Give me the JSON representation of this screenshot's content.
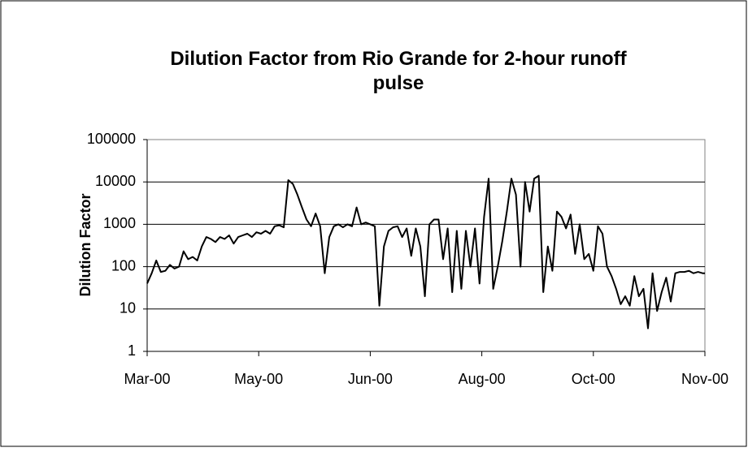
{
  "chart_data": {
    "type": "line",
    "title": "Dilution Factor from Rio Grande for 2-hour runoff pulse",
    "y_label": "Dilution Factor",
    "color": "#000000",
    "log_y": true,
    "grid": true,
    "xlim": [
      0,
      245
    ],
    "xticks": [
      {
        "value": 0,
        "label": "Mar-00"
      },
      {
        "value": 49,
        "label": "May-00"
      },
      {
        "value": 98,
        "label": "Jun-00"
      },
      {
        "value": 147,
        "label": "Aug-00"
      },
      {
        "value": 196,
        "label": "Oct-00"
      },
      {
        "value": 245,
        "label": "Nov-00"
      }
    ],
    "ylim": [
      1,
      100000
    ],
    "yticks": [
      1,
      10,
      100,
      1000,
      10000,
      100000
    ],
    "x": [
      0,
      2,
      4,
      6,
      8,
      10,
      12,
      14,
      16,
      18,
      20,
      22,
      24,
      26,
      28,
      30,
      32,
      34,
      36,
      38,
      40,
      42,
      44,
      46,
      48,
      50,
      52,
      54,
      56,
      58,
      60,
      62,
      64,
      66,
      68,
      70,
      72,
      74,
      76,
      78,
      80,
      82,
      84,
      86,
      88,
      90,
      92,
      94,
      96,
      98,
      100,
      102,
      104,
      106,
      108,
      110,
      112,
      114,
      116,
      118,
      120,
      122,
      124,
      126,
      128,
      130,
      132,
      134,
      136,
      138,
      140,
      142,
      144,
      146,
      148,
      150,
      152,
      154,
      156,
      158,
      160,
      162,
      164,
      166,
      168,
      170,
      172,
      174,
      176,
      178,
      180,
      182,
      184,
      186,
      188,
      190,
      192,
      194,
      196,
      198,
      200,
      202,
      204,
      206,
      208,
      210,
      212,
      214,
      216,
      218,
      220,
      222,
      224,
      226,
      228,
      230,
      232,
      234,
      236,
      238,
      240,
      242,
      244,
      245
    ],
    "values": [
      40,
      70,
      140,
      75,
      80,
      110,
      90,
      100,
      230,
      150,
      170,
      140,
      300,
      500,
      450,
      380,
      500,
      450,
      550,
      350,
      500,
      550,
      600,
      500,
      650,
      600,
      700,
      600,
      900,
      950,
      850,
      11000,
      9000,
      5000,
      2500,
      1300,
      900,
      1800,
      900,
      70,
      500,
      900,
      1000,
      850,
      1000,
      900,
      2500,
      1000,
      1100,
      1000,
      900,
      12,
      300,
      700,
      850,
      900,
      500,
      800,
      180,
      800,
      300,
      20,
      1000,
      1300,
      1300,
      150,
      800,
      25,
      700,
      30,
      700,
      100,
      800,
      40,
      1500,
      12000,
      30,
      100,
      400,
      2000,
      12000,
      5000,
      100,
      10000,
      2000,
      12000,
      14000,
      25,
      300,
      80,
      2000,
      1500,
      800,
      1700,
      200,
      1000,
      150,
      200,
      80,
      900,
      600,
      100,
      60,
      30,
      13,
      20,
      12,
      60,
      20,
      30,
      3.5,
      70,
      9,
      25,
      55,
      15,
      70,
      75,
      75,
      80,
      70,
      75,
      70,
      70
    ]
  }
}
